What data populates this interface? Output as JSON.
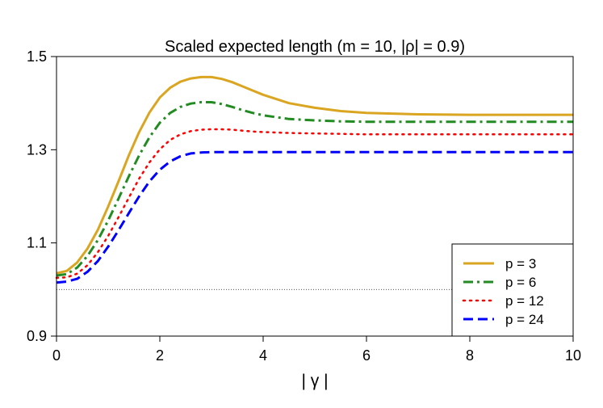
{
  "chart_data": {
    "type": "line",
    "title": "Scaled expected length (m = 10, |ρ| = 0.9)",
    "xlabel": "| γ |",
    "ylabel": "",
    "xlim": [
      0,
      10
    ],
    "ylim": [
      0.9,
      1.5
    ],
    "xticks": [
      "0",
      "2",
      "4",
      "6",
      "8",
      "10"
    ],
    "xtick_values": [
      0,
      2,
      4,
      6,
      8,
      10
    ],
    "yticks": [
      "0.9",
      "1.1",
      "1.3",
      "1.5"
    ],
    "ytick_values": [
      0.9,
      1.1,
      1.3,
      1.5
    ],
    "reference_line": {
      "y": 1.0,
      "style": "dotted",
      "color": "#555555"
    },
    "legend_position": "bottom-right",
    "x": [
      0,
      0.2,
      0.4,
      0.6,
      0.8,
      1.0,
      1.2,
      1.4,
      1.6,
      1.8,
      2.0,
      2.2,
      2.4,
      2.6,
      2.8,
      3.0,
      3.2,
      3.4,
      3.6,
      3.8,
      4.0,
      4.5,
      5.0,
      5.5,
      6.0,
      7.0,
      8.0,
      9.0,
      10.0
    ],
    "series": [
      {
        "name": "p = 3",
        "color": "#DAA520",
        "dash": "solid",
        "values": [
          1.035,
          1.04,
          1.058,
          1.088,
          1.128,
          1.178,
          1.232,
          1.288,
          1.338,
          1.38,
          1.412,
          1.433,
          1.446,
          1.453,
          1.456,
          1.456,
          1.452,
          1.445,
          1.436,
          1.427,
          1.418,
          1.4,
          1.39,
          1.383,
          1.379,
          1.376,
          1.375,
          1.375,
          1.375
        ]
      },
      {
        "name": "p = 6",
        "color": "#228B22",
        "dash": "dashdot",
        "values": [
          1.03,
          1.033,
          1.047,
          1.072,
          1.106,
          1.148,
          1.195,
          1.243,
          1.288,
          1.327,
          1.358,
          1.379,
          1.392,
          1.399,
          1.402,
          1.402,
          1.398,
          1.392,
          1.385,
          1.379,
          1.374,
          1.366,
          1.363,
          1.361,
          1.36,
          1.36,
          1.36,
          1.36,
          1.36
        ]
      },
      {
        "name": "p = 12",
        "color": "#FF0000",
        "dash": "dotted",
        "values": [
          1.025,
          1.026,
          1.034,
          1.052,
          1.08,
          1.115,
          1.155,
          1.197,
          1.238,
          1.273,
          1.301,
          1.321,
          1.333,
          1.34,
          1.343,
          1.344,
          1.344,
          1.343,
          1.341,
          1.339,
          1.338,
          1.336,
          1.335,
          1.334,
          1.333,
          1.333,
          1.333,
          1.333,
          1.333
        ]
      },
      {
        "name": "p = 24",
        "color": "#0000FF",
        "dash": "dashed",
        "values": [
          1.015,
          1.017,
          1.023,
          1.038,
          1.061,
          1.092,
          1.127,
          1.164,
          1.2,
          1.232,
          1.257,
          1.275,
          1.286,
          1.292,
          1.294,
          1.295,
          1.295,
          1.295,
          1.295,
          1.295,
          1.295,
          1.295,
          1.295,
          1.295,
          1.295,
          1.295,
          1.295,
          1.295,
          1.295
        ]
      }
    ]
  }
}
